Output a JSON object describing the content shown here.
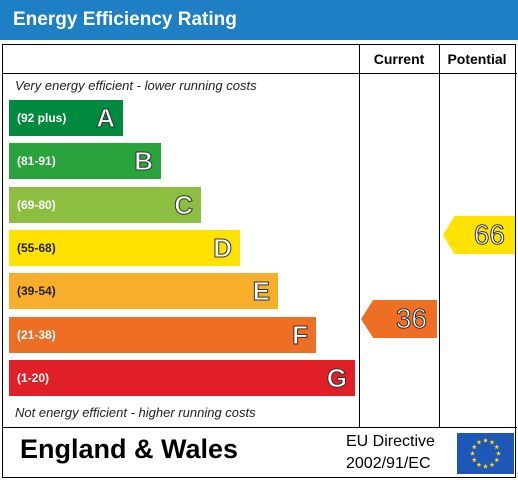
{
  "title": "Energy Efficiency Rating",
  "columns": {
    "current": "Current",
    "potential": "Potential"
  },
  "notes": {
    "top": "Very energy efficient - lower running costs",
    "bottom": "Not energy efficient - higher running costs"
  },
  "bands": [
    {
      "range": "(92 plus)",
      "letter": "A",
      "color": "#008a3e"
    },
    {
      "range": "(81-91)",
      "letter": "B",
      "color": "#2aa33c"
    },
    {
      "range": "(69-80)",
      "letter": "C",
      "color": "#8cbf3f"
    },
    {
      "range": "(55-68)",
      "letter": "D",
      "color": "#ffe200"
    },
    {
      "range": "(39-54)",
      "letter": "E",
      "color": "#f7ae2a"
    },
    {
      "range": "(21-38)",
      "letter": "F",
      "color": "#ee6e24"
    },
    {
      "range": "(1-20)",
      "letter": "G",
      "color": "#e01f26"
    }
  ],
  "ratings": {
    "current": {
      "value": "36",
      "color": "#ee6e24"
    },
    "potential": {
      "value": "66",
      "color": "#ffe200"
    }
  },
  "footer": {
    "region": "England & Wales",
    "directive_line1": "EU Directive",
    "directive_line2": "2002/91/EC"
  },
  "colors": {
    "header": "#1e7fc4",
    "eu_flag": "#1e57b8",
    "eu_stars": "#ffdd00"
  },
  "icons": {
    "flag": "eu-flag-icon"
  }
}
